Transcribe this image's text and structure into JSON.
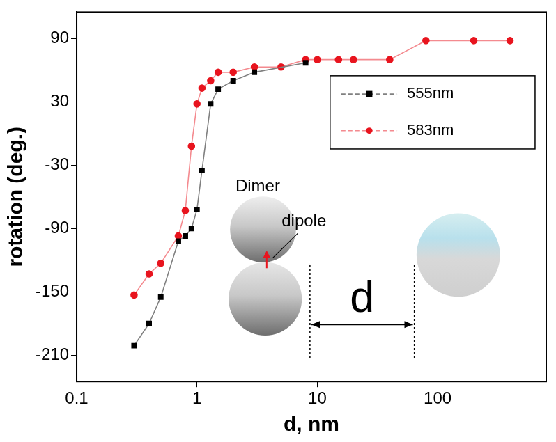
{
  "chart_data": {
    "type": "line",
    "x_label": "d, nm",
    "y_label": "rotation (deg.)",
    "log": "x",
    "xlim": [
      0.1,
      800
    ],
    "xticks": [
      0.1,
      1,
      10,
      100
    ],
    "ylim": [
      -235,
      115
    ],
    "yticks": [
      -210,
      -150,
      -90,
      -30,
      30,
      90
    ],
    "grid": false,
    "legend": "upper right",
    "series": [
      {
        "name": "555nm",
        "color": "#000000",
        "marker": "square",
        "x": [
          0.3,
          0.4,
          0.5,
          0.7,
          0.8,
          0.9,
          1,
          1.1,
          1.3,
          1.5,
          2,
          3,
          8
        ],
        "values": [
          -201,
          -180,
          -155,
          -102,
          -97,
          -90,
          -72,
          -35,
          28,
          42,
          50,
          58,
          67
        ]
      },
      {
        "name": "583nm",
        "color": "#e8141e",
        "marker": "circle",
        "x": [
          0.3,
          0.4,
          0.5,
          0.7,
          0.8,
          0.9,
          1,
          1.1,
          1.3,
          1.5,
          2,
          3,
          5,
          8,
          10,
          15,
          20,
          40,
          80,
          200,
          400
        ],
        "values": [
          -153,
          -133,
          -123,
          -97,
          -73,
          -12,
          28,
          43,
          50,
          58,
          58,
          63,
          63,
          70,
          70,
          70,
          70,
          70,
          88,
          88,
          88
        ]
      }
    ],
    "annotations": [
      "Dimer",
      "dipole",
      "d"
    ]
  }
}
